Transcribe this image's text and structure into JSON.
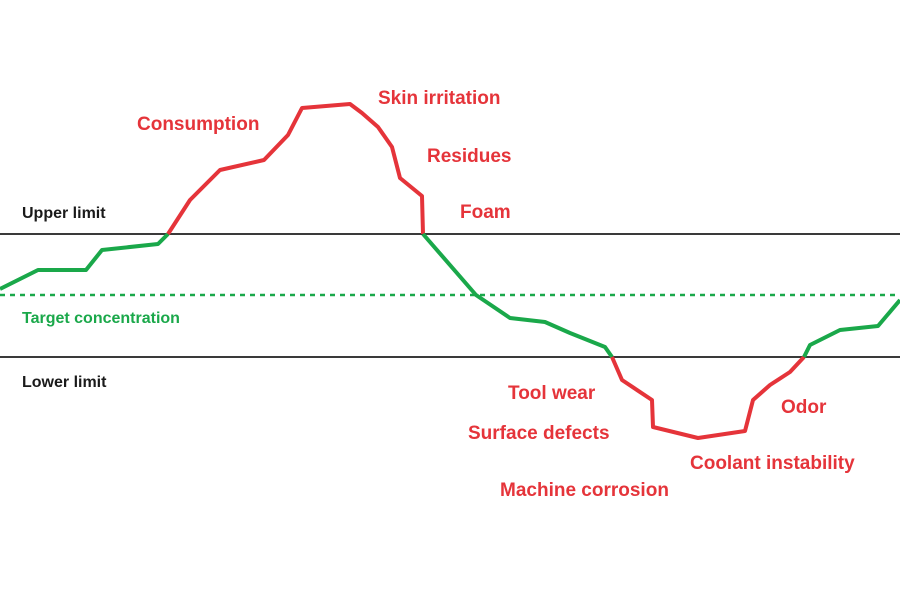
{
  "colors": {
    "in_range": "#1aa84a",
    "out_of_range": "#e5343a",
    "limit_line": "#3a3a3a",
    "limit_text": "#1a1a1a"
  },
  "labels": {
    "upper_limit": "Upper limit",
    "lower_limit": "Lower limit",
    "target": "Target concentration"
  },
  "above_effects": {
    "consumption": "Consumption",
    "skin_irritation": "Skin irritation",
    "residues": "Residues",
    "foam": "Foam"
  },
  "below_effects": {
    "tool_wear": "Tool wear",
    "surface_defects": "Surface defects",
    "machine_corrosion": "Machine corrosion",
    "odor": "Odor",
    "coolant_instability": "Coolant instability"
  }
}
